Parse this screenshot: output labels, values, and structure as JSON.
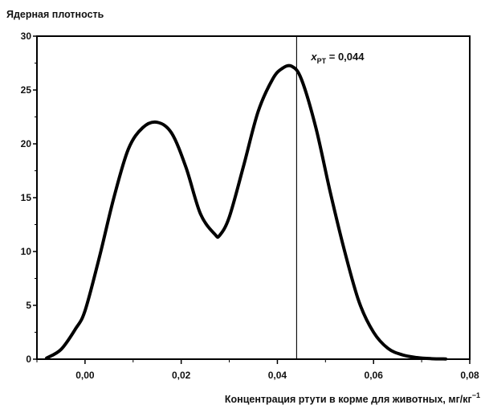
{
  "chart_data": {
    "type": "line",
    "ylabel": "Ядерная плотность",
    "xlabel": "Концентрация ртути в корме для животных, мг/кг",
    "xlabel_superscript": "−1",
    "xlim": [
      -0.01,
      0.08
    ],
    "ylim": [
      0,
      30
    ],
    "x_ticks": [
      0.0,
      0.02,
      0.04,
      0.06,
      0.08
    ],
    "x_tick_labels": [
      "0,00",
      "0,02",
      "0,04",
      "0,06",
      "0,08"
    ],
    "y_ticks": [
      0,
      5,
      10,
      15,
      20,
      25,
      30
    ],
    "y_tick_labels": [
      "0",
      "5",
      "10",
      "15",
      "20",
      "25",
      "30"
    ],
    "grid": false,
    "series": [
      {
        "x": [
          -0.008,
          -0.005,
          -0.002,
          0.0,
          0.003,
          0.006,
          0.009,
          0.012,
          0.015,
          0.018,
          0.021,
          0.024,
          0.027,
          0.028,
          0.03,
          0.033,
          0.036,
          0.039,
          0.041,
          0.043,
          0.045,
          0.048,
          0.051,
          0.054,
          0.057,
          0.06,
          0.063,
          0.066,
          0.069,
          0.072,
          0.075
        ],
        "y": [
          0.1,
          0.9,
          2.8,
          4.5,
          9.5,
          15.0,
          19.5,
          21.5,
          22.0,
          21.0,
          17.8,
          13.5,
          11.6,
          11.5,
          13.2,
          18.0,
          23.0,
          26.0,
          27.0,
          27.2,
          26.0,
          21.5,
          15.5,
          10.0,
          5.3,
          2.5,
          1.0,
          0.4,
          0.15,
          0.05,
          0.02
        ],
        "color": "#000000"
      }
    ],
    "annotations": [
      {
        "type": "vline",
        "x": 0.044,
        "label_main": "x",
        "label_sub": "PT",
        "label_rest": " = 0,044"
      }
    ]
  }
}
